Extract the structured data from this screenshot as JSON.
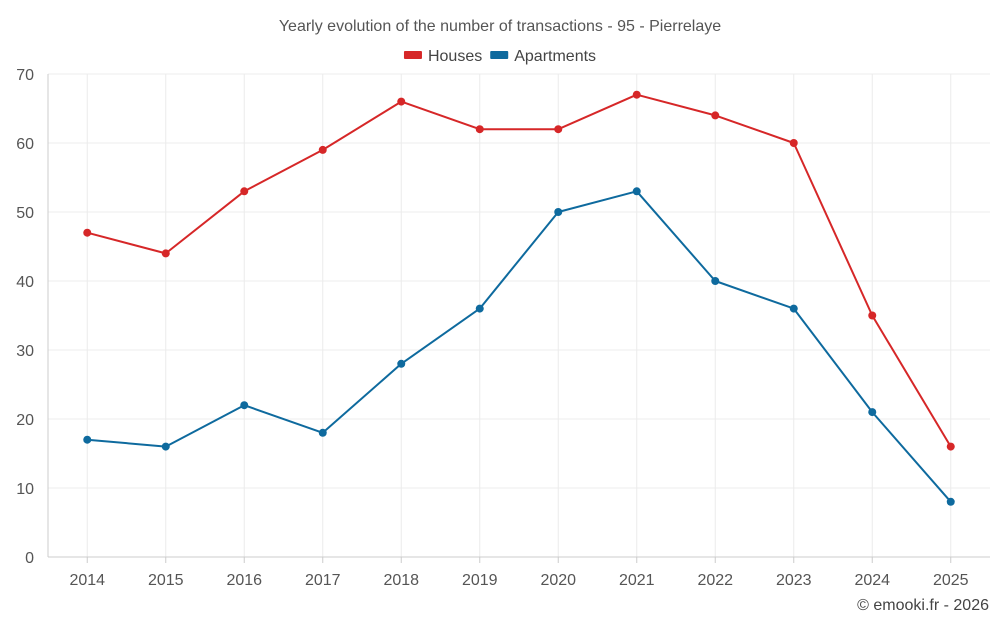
{
  "chart_data": {
    "type": "line",
    "title": "Yearly evolution of the number of transactions - 95 - Pierrelaye",
    "xlabel": "",
    "ylabel": "",
    "categories": [
      "2014",
      "2015",
      "2016",
      "2017",
      "2018",
      "2019",
      "2020",
      "2021",
      "2022",
      "2023",
      "2024",
      "2025"
    ],
    "ylim": [
      0,
      70
    ],
    "yticks": [
      0,
      10,
      20,
      30,
      40,
      50,
      60,
      70
    ],
    "grid": true,
    "legend_position": "top-center",
    "series": [
      {
        "name": "Houses",
        "color": "#d62728",
        "values": [
          47,
          44,
          53,
          59,
          66,
          62,
          62,
          67,
          64,
          60,
          35,
          16
        ]
      },
      {
        "name": "Apartments",
        "color": "#0e6a9e",
        "values": [
          17,
          16,
          22,
          18,
          28,
          36,
          50,
          53,
          40,
          36,
          21,
          8
        ]
      }
    ],
    "credit": "© emooki.fr - 2026"
  }
}
